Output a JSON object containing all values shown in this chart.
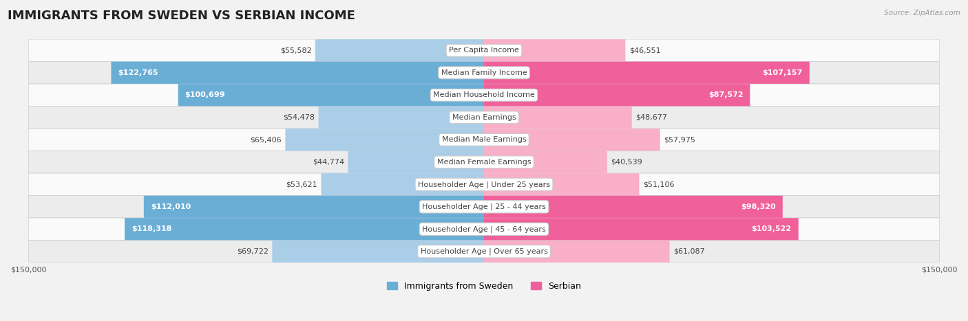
{
  "title": "IMMIGRANTS FROM SWEDEN VS SERBIAN INCOME",
  "source": "Source: ZipAtlas.com",
  "categories": [
    "Per Capita Income",
    "Median Family Income",
    "Median Household Income",
    "Median Earnings",
    "Median Male Earnings",
    "Median Female Earnings",
    "Householder Age | Under 25 years",
    "Householder Age | 25 - 44 years",
    "Householder Age | 45 - 64 years",
    "Householder Age | Over 65 years"
  ],
  "sweden_values": [
    55582,
    122765,
    100699,
    54478,
    65406,
    44774,
    53621,
    112010,
    118318,
    69722
  ],
  "serbian_values": [
    46551,
    107157,
    87572,
    48677,
    57975,
    40539,
    51106,
    98320,
    103522,
    61087
  ],
  "sweden_color_dark": "#6aaed6",
  "sweden_color_light": "#aacde8",
  "serbian_color_dark": "#f0609a",
  "serbian_color_light": "#f9afc8",
  "label_white_threshold": 80000,
  "bar_height": 0.55,
  "background_color": "#f2f2f2",
  "row_bg_colors": [
    "#fafafa",
    "#ececec"
  ],
  "row_border_color": "#d0d0d0",
  "xlim": 150000,
  "category_label_bg": "#ffffff",
  "category_label_color": "#444444",
  "title_fontsize": 13,
  "label_fontsize": 8,
  "cat_fontsize": 8,
  "legend_fontsize": 9,
  "tick_fontsize": 8
}
